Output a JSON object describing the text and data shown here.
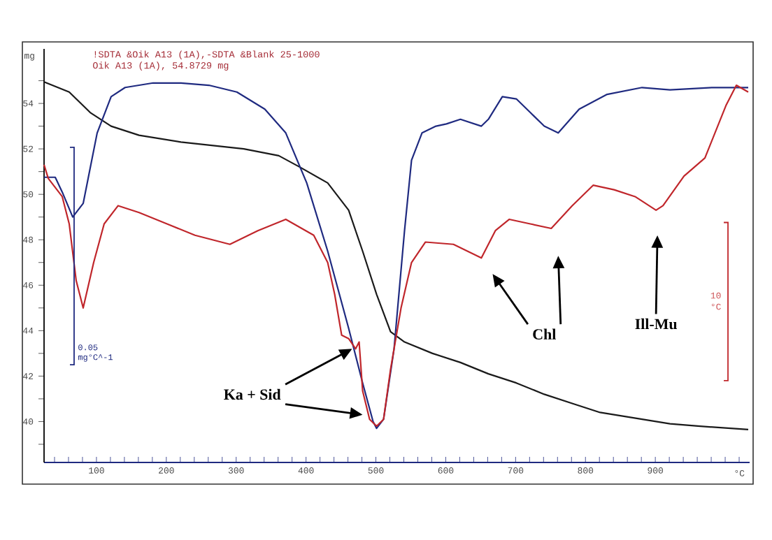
{
  "chart_data": {
    "type": "line",
    "xlabel": "°C",
    "ylabel": "mg",
    "xlim": [
      25,
      1035
    ],
    "ylim": [
      38.2,
      56.4
    ],
    "xticks": [
      100,
      200,
      300,
      400,
      500,
      600,
      700,
      800,
      900
    ],
    "yticks": [
      {
        "value": 39,
        "label": null
      },
      40,
      {
        "value": 41,
        "label": null
      },
      42,
      {
        "value": 43,
        "label": null
      },
      44,
      {
        "value": 45,
        "label": null
      },
      46,
      {
        "value": 47,
        "label": null
      },
      48,
      {
        "value": 49,
        "label": null
      },
      50,
      {
        "value": 51,
        "label": null
      },
      52,
      {
        "value": 53,
        "label": null
      },
      54,
      {
        "value": 55,
        "label": null
      }
    ],
    "marker": "none",
    "series": [
      {
        "color": "#1a1a1a",
        "x": [
          25,
          61,
          91,
          121,
          161,
          221,
          311,
          361,
          391,
          431,
          461,
          481,
          501,
          521,
          541,
          581,
          621,
          661,
          701,
          741,
          781,
          821,
          861,
          921,
          961,
          1033
        ],
        "values": [
          54.95,
          54.5,
          53.6,
          53.0,
          52.6,
          52.3,
          52.0,
          51.7,
          51.2,
          50.5,
          49.3,
          47.5,
          45.6,
          43.95,
          43.5,
          43.0,
          42.6,
          42.1,
          41.7,
          41.2,
          40.8,
          40.4,
          40.2,
          39.9,
          39.8,
          39.65
        ]
      },
      {
        "color": "#1f2a80",
        "x": [
          25,
          41,
          51,
          66,
          81,
          101,
          121,
          141,
          181,
          221,
          261,
          301,
          341,
          371,
          401,
          431,
          461,
          481,
          496,
          501,
          511,
          526,
          541,
          551,
          566,
          586,
          601,
          621,
          651,
          661,
          681,
          701,
          721,
          741,
          761,
          791,
          831,
          881,
          921,
          981,
          1033
        ],
        "values": [
          50.75,
          50.75,
          50.1,
          49.0,
          49.6,
          52.7,
          54.3,
          54.7,
          54.9,
          54.9,
          54.8,
          54.5,
          53.75,
          52.7,
          50.5,
          47.5,
          44.1,
          41.7,
          40.0,
          39.7,
          40.1,
          43.2,
          48.4,
          51.5,
          52.7,
          53.0,
          53.1,
          53.3,
          53.0,
          53.3,
          54.3,
          54.2,
          53.6,
          53.0,
          52.7,
          53.75,
          54.4,
          54.7,
          54.6,
          54.7,
          54.7
        ]
      },
      {
        "color": "#c0262b",
        "x": [
          25,
          31,
          51,
          61,
          71,
          81,
          96,
          111,
          131,
          161,
          201,
          241,
          291,
          331,
          371,
          411,
          431,
          441,
          451,
          461,
          471,
          476,
          481,
          491,
          501,
          511,
          521,
          536,
          551,
          571,
          611,
          651,
          671,
          691,
          721,
          751,
          781,
          811,
          841,
          871,
          901,
          911,
          941,
          971,
          1001,
          1016,
          1033
        ],
        "values": [
          51.3,
          50.7,
          49.9,
          48.7,
          46.2,
          45.0,
          47.0,
          48.7,
          49.5,
          49.2,
          48.7,
          48.2,
          47.8,
          48.4,
          48.9,
          48.2,
          47.0,
          45.6,
          43.8,
          43.65,
          43.2,
          43.5,
          41.35,
          40.1,
          39.8,
          40.1,
          42.3,
          45.0,
          47.0,
          47.9,
          47.8,
          47.2,
          48.4,
          48.9,
          48.7,
          48.5,
          49.5,
          50.4,
          50.2,
          49.9,
          49.3,
          49.5,
          50.8,
          51.6,
          53.9,
          54.8,
          54.5
        ]
      }
    ],
    "annotations": [
      "!SDTA &Oik A13 (1A),-SDTA &Blank 25-1000",
      "Oik A13 (1A), 54.8729 mg",
      "Ka + Sid",
      "Chl",
      "Ill-Mu",
      "0.05 mg°C^-1",
      "10 °C"
    ]
  }
}
